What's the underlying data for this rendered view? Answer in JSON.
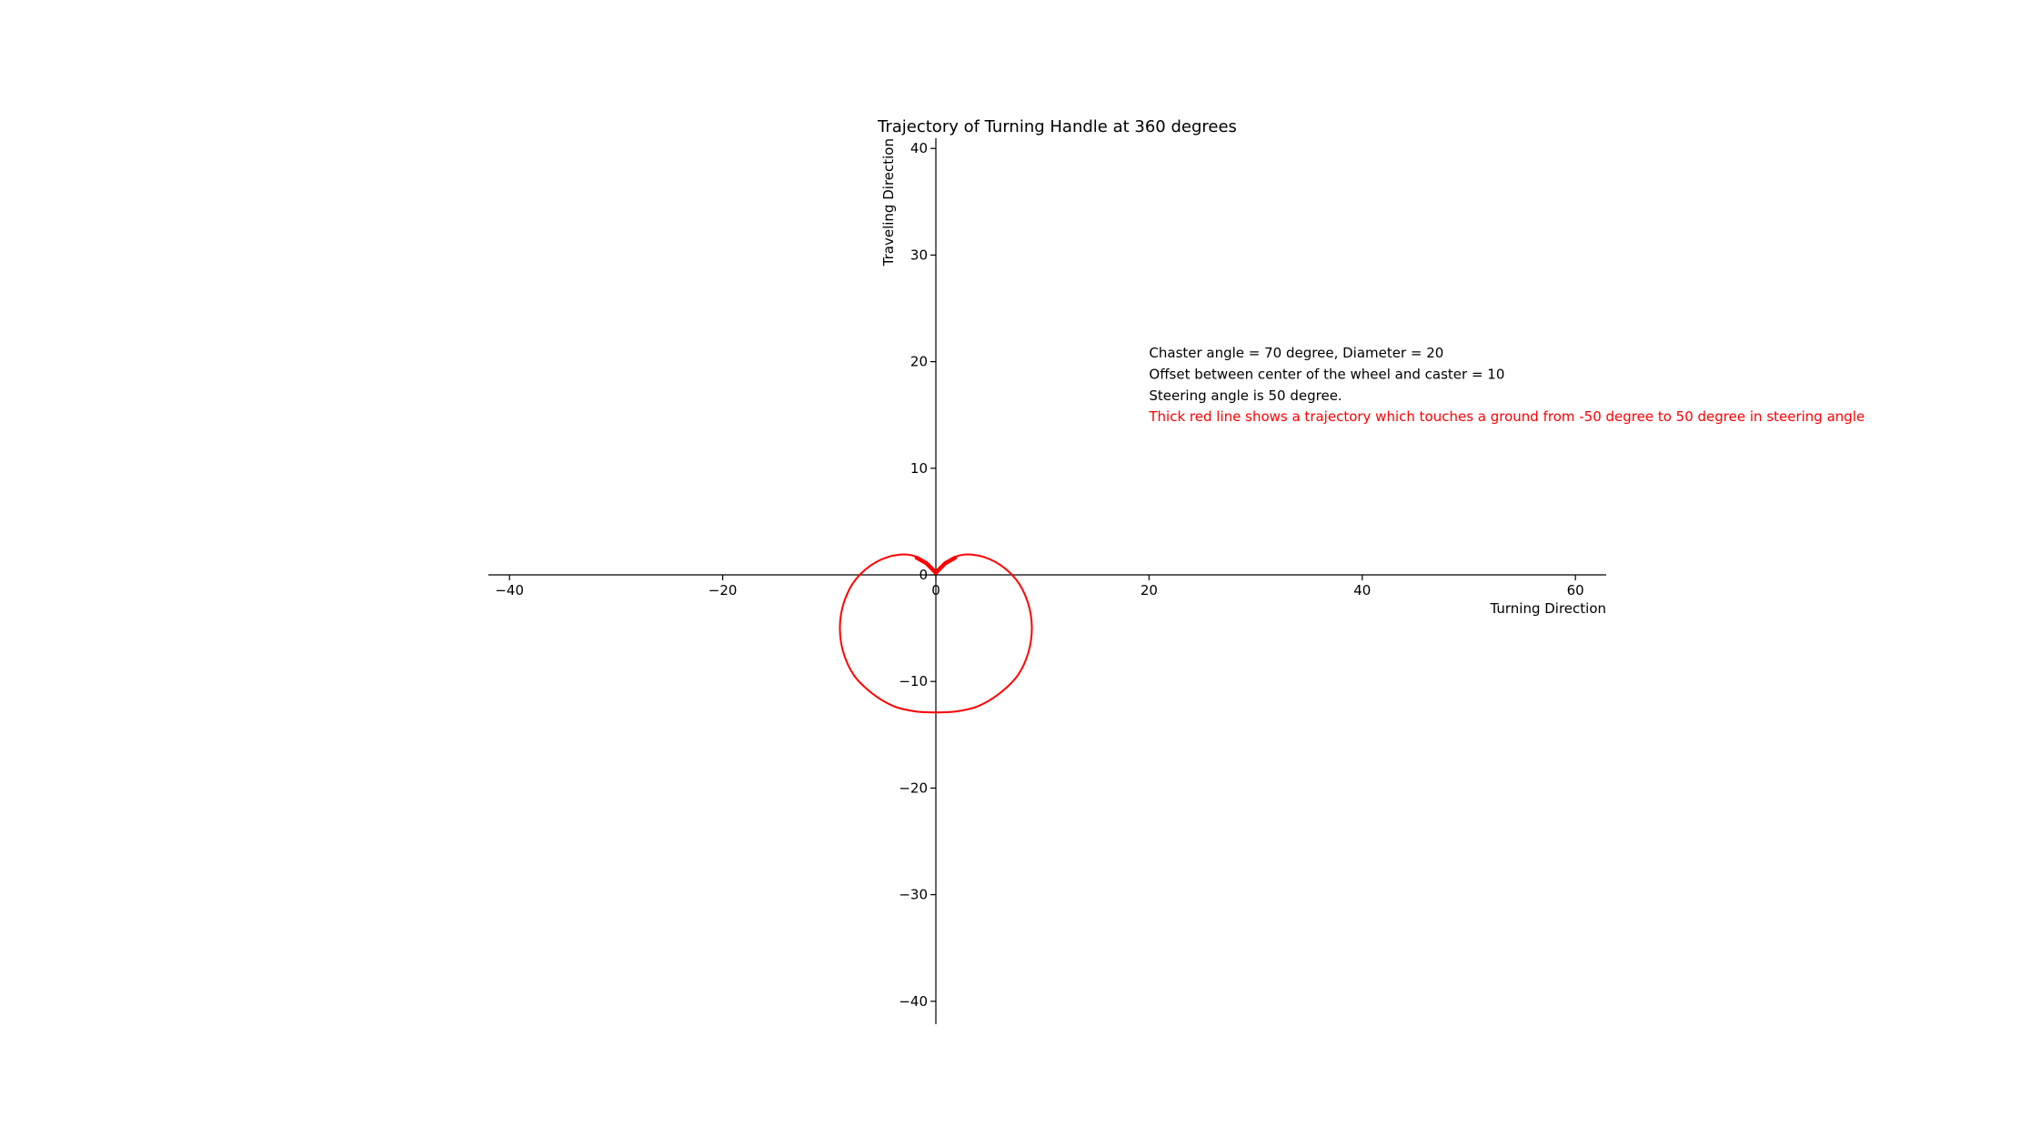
{
  "chart_data": {
    "type": "line",
    "title": "Trajectory of Turning Handle at 360 degrees",
    "xlabel": "Turning Direction",
    "ylabel": "Traveling  Direction",
    "xlim": [
      -42,
      63
    ],
    "ylim": [
      -42,
      41
    ],
    "xticks": [
      -40,
      -20,
      0,
      20,
      40,
      60
    ],
    "yticks": [
      -40,
      -30,
      -20,
      -10,
      0,
      10,
      20,
      30,
      40
    ],
    "xtick_labels": [
      "−40",
      "−20",
      "0",
      "20",
      "40",
      "60"
    ],
    "ytick_labels": [
      "−40",
      "−30",
      "−20",
      "−10",
      "0",
      "10",
      "20",
      "30",
      "40"
    ],
    "spines": "centered at origin",
    "grid": false,
    "annotations": [
      {
        "text": "Chaster angle = 70 degree,  Diameter = 20",
        "x": 20,
        "y": 20.4,
        "color": "#000000"
      },
      {
        "text": "Offset between center of the wheel and caster = 10",
        "x": 20,
        "y": 18.4,
        "color": "#000000"
      },
      {
        "text": "Steering angle is 50 degree.",
        "x": 20,
        "y": 16.4,
        "color": "#000000"
      },
      {
        "text": "Thick red line shows a trajectory which touches a ground from -50 degree to 50 degree in steering angle",
        "x": 20,
        "y": 14.4,
        "color": "#ff0000"
      }
    ],
    "series": [
      {
        "color": "#ff0000",
        "points": [
          [
            0,
            0.2
          ],
          [
            -1.6,
            1.6
          ],
          [
            -3.4,
            1.9
          ],
          [
            -5.6,
            1.2
          ],
          [
            -7.5,
            -0.4
          ],
          [
            -8.6,
            -2.5
          ],
          [
            -9,
            -4.8
          ],
          [
            -8.7,
            -7.2
          ],
          [
            -7.7,
            -9.4
          ],
          [
            -6,
            -11.1
          ],
          [
            -4,
            -12.3
          ],
          [
            -2,
            -12.8
          ],
          [
            0,
            -12.9
          ],
          [
            2,
            -12.8
          ],
          [
            4,
            -12.3
          ],
          [
            6,
            -11.1
          ],
          [
            7.7,
            -9.4
          ],
          [
            8.7,
            -7.2
          ],
          [
            9,
            -4.8
          ],
          [
            8.6,
            -2.5
          ],
          [
            7.5,
            -0.4
          ],
          [
            5.6,
            1.2
          ],
          [
            3.4,
            1.9
          ],
          [
            1.6,
            1.6
          ],
          [
            0,
            0.2
          ]
        ]
      },
      {
        "color": "#ff0000",
        "thick": true,
        "points": [
          [
            -1.8,
            1.6
          ],
          [
            -0.9,
            1.1
          ],
          [
            -0.3,
            0.5
          ],
          [
            0,
            0.2
          ],
          [
            0.3,
            0.5
          ],
          [
            0.9,
            1.1
          ],
          [
            1.8,
            1.6
          ]
        ]
      }
    ]
  }
}
